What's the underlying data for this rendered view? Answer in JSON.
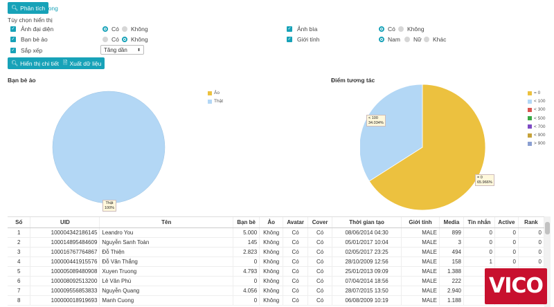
{
  "toolbar": {
    "analyze_label": "Phân tích",
    "done_label": "Xong"
  },
  "options": {
    "heading": "Tùy chọn hiển thị",
    "avatar_label": "Ảnh đại diện",
    "avatar_yes": "Có",
    "avatar_no": "Không",
    "cover_label": "Ảnh bìa",
    "cover_yes": "Có",
    "cover_no": "Không",
    "fake_label": "Bạn bè ảo",
    "fake_yes": "Có",
    "fake_no": "Không",
    "gender_label": "Giới tính",
    "gender_male": "Nam",
    "gender_female": "Nữ",
    "gender_other": "Khác",
    "sort_label": "Sắp xếp",
    "sort_value": "Tăng dần"
  },
  "actions": {
    "detail_label": "Hiển thị chi tiết",
    "export_label": "Xuất dữ liệu"
  },
  "chart_data": [
    {
      "type": "pie",
      "title": "Bạn bè ảo",
      "legend": [
        "Ảo",
        "Thật"
      ],
      "legend_position": "top-right",
      "colors": {
        "Ảo": "#ecc13f",
        "Thật": "#b3d7f5"
      },
      "slices": [
        {
          "name": "Thật",
          "value": 100,
          "label": "Thật",
          "pct": "100%"
        },
        {
          "name": "Ảo",
          "value": 0
        }
      ]
    },
    {
      "type": "pie",
      "title": "Điểm tương tác",
      "legend": [
        "= 0",
        "< 100",
        "< 300",
        "< 500",
        "< 700",
        "< 900",
        "> 900"
      ],
      "legend_position": "right",
      "colors": {
        "= 0": "#ecc13f",
        "< 100": "#b3d7f5",
        "< 300": "#d9534f",
        "< 500": "#3aa845",
        "< 700": "#7e4bc4",
        "< 900": "#c6a23a",
        "> 900": "#8a9fd1"
      },
      "slices": [
        {
          "name": "= 0",
          "value": 65.966,
          "label": "= 0",
          "pct": "65.966%"
        },
        {
          "name": "< 100",
          "value": 34.034,
          "label": "< 100",
          "pct": "34.034%"
        }
      ]
    }
  ],
  "table": {
    "headers": [
      "Số",
      "UID",
      "Tên",
      "Bạn bè",
      "Ảo",
      "Avatar",
      "Cover",
      "Thời gian tạo",
      "Giới tính",
      "Media",
      "Tin nhắn",
      "Active",
      "Rank"
    ],
    "rows": [
      [
        "1",
        "100004342186145",
        "Leandro You",
        "5.000",
        "Không",
        "Có",
        "Có",
        "08/06/2014 04:30",
        "MALE",
        "899",
        "0",
        "0",
        "0"
      ],
      [
        "2",
        "100014895484609",
        "Nguyễn Sanh Toàn",
        "145",
        "Không",
        "Có",
        "Có",
        "05/01/2017 10:04",
        "MALE",
        "3",
        "0",
        "0",
        "0"
      ],
      [
        "3",
        "100016767764867",
        "Đỗ Thiện",
        "2.823",
        "Không",
        "Có",
        "Có",
        "02/05/2017 23:25",
        "MALE",
        "494",
        "0",
        "0",
        "0"
      ],
      [
        "4",
        "100000441915576",
        "Đỗ Văn Thắng",
        "0",
        "Không",
        "Có",
        "Có",
        "28/10/2009 12:56",
        "MALE",
        "158",
        "1",
        "0",
        "0"
      ],
      [
        "5",
        "100005089480908",
        "Xuyen Truong",
        "4.793",
        "Không",
        "Có",
        "Có",
        "25/01/2013 09:09",
        "MALE",
        "1.388",
        "",
        "",
        ""
      ],
      [
        "6",
        "100008092513200",
        "Lê Văn Phú",
        "0",
        "Không",
        "Có",
        "Có",
        "07/04/2014 18:56",
        "MALE",
        "222",
        "",
        "",
        ""
      ],
      [
        "7",
        "100009556853833",
        "Nguyễn Quang",
        "4.056",
        "Không",
        "Có",
        "Có",
        "28/07/2015 13:50",
        "MALE",
        "2.940",
        "",
        "",
        ""
      ],
      [
        "8",
        "100000018919693",
        "Manh Cuong",
        "0",
        "Không",
        "Có",
        "Có",
        "06/08/2009 10:19",
        "MALE",
        "1.188",
        "",
        "",
        ""
      ]
    ]
  },
  "logo": {
    "text": "VICO"
  }
}
